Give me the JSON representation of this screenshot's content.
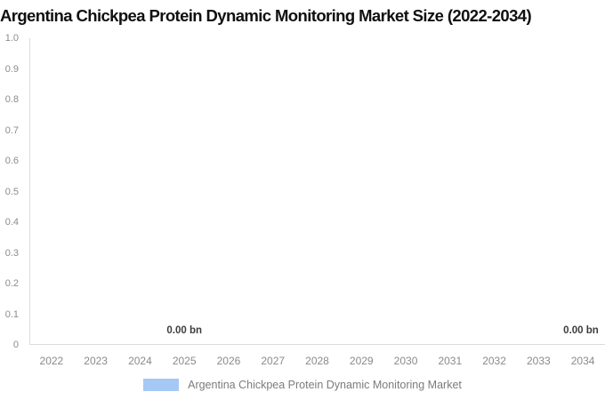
{
  "title": "Argentina Chickpea Protein Dynamic Monitoring Market Size (2022-2034)",
  "colors": {
    "series": "#a5c9f4",
    "axis_line": "#dcdcdc",
    "tick_text": "#8c8c8c",
    "data_label_text": "#3d3d3d",
    "legend_text": "#7c7c7c",
    "title_text": "#101010",
    "background": "#ffffff"
  },
  "chart_data": {
    "type": "bar",
    "title": "Argentina Chickpea Protein Dynamic Monitoring Market Size (2022-2034)",
    "categories": [
      "2022",
      "2023",
      "2024",
      "2025",
      "2026",
      "2027",
      "2028",
      "2029",
      "2030",
      "2031",
      "2032",
      "2033",
      "2034"
    ],
    "series": [
      {
        "name": "Argentina Chickpea Protein Dynamic Monitoring Market",
        "values": [
          0,
          0,
          0,
          0,
          0,
          0,
          0,
          0,
          0,
          0,
          0,
          0,
          0
        ],
        "color": "#a5c9f4"
      }
    ],
    "unit": "bn",
    "xlabel": "",
    "ylabel": "",
    "ylim": [
      0,
      1.0
    ],
    "ytick_labels": [
      "1.0",
      "0.9",
      "0.8",
      "0.7",
      "0.6",
      "0.5",
      "0.4",
      "0.3",
      "0.2",
      "0.1",
      "0"
    ],
    "grid": false,
    "data_labels": [
      {
        "category": "2025",
        "text": "0.00 bn"
      },
      {
        "category": "2034",
        "text": "0.00 bn"
      }
    ],
    "legend": {
      "position": "bottom",
      "label": "Argentina Chickpea Protein Dynamic Monitoring Market",
      "swatch_color": "#a5c9f4"
    }
  }
}
